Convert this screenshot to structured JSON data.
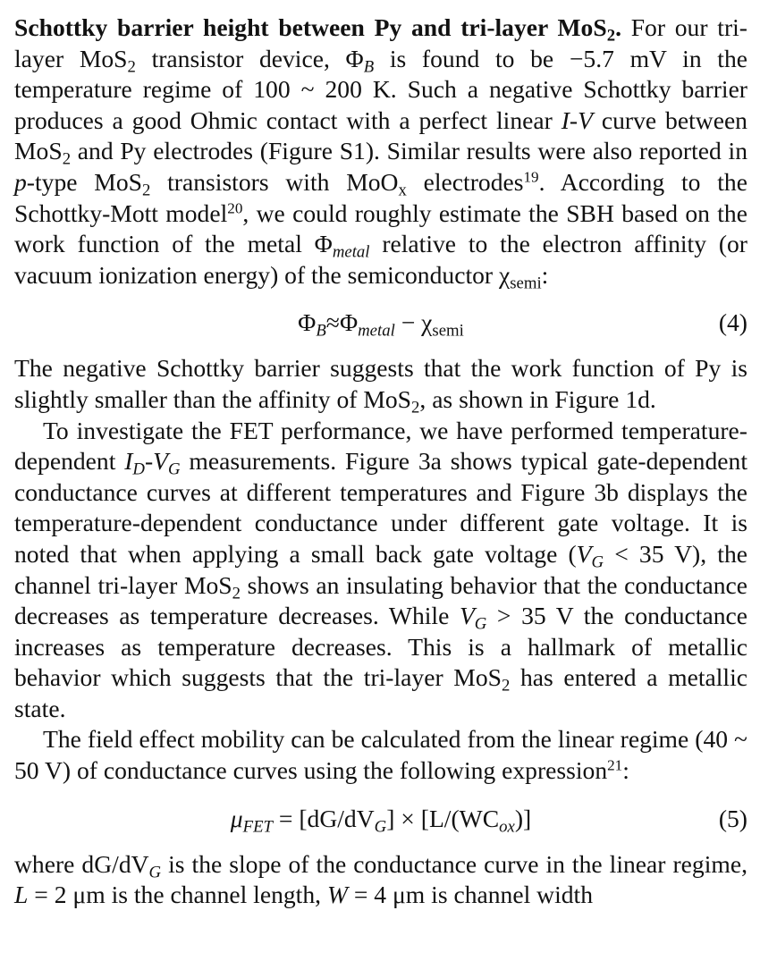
{
  "section": {
    "heading_a": "Schottky barrier height between Py and tri-layer MoS",
    "heading_sub": "2",
    "heading_b": "."
  },
  "para1": {
    "t1": " For our tri-layer MoS",
    "s1": "2",
    "t2": " transistor device, Φ",
    "s2": "B",
    "t3": " is found to be −5.7 mV in the temperature regime of 100 ~ 200 K. Such a negative Schottky barrier produces a good Ohmic contact with a perfect linear ",
    "iv": "I-V",
    "t4": " curve between MoS",
    "s3": "2",
    "t5": " and Py electrodes (Figure S1). Similar results were also reported in ",
    "ptype": "p",
    "t6": "-type MoS",
    "s4": "2",
    "t7": " transistors with MoO",
    "s5": "x",
    "t8": " electrodes",
    "ref19": "19",
    "t9": ". According to the Schottky-Mott model",
    "ref20": "20",
    "t10": ", we could roughly estimate the SBH based on the work function of the metal Φ",
    "s6": "metal",
    "t11": " relative to the electron affinity (or vacuum ionization energy) of the semiconductor χ",
    "s7": "semi",
    "t12": ":"
  },
  "eq4": {
    "a": "Φ",
    "a_sub": "B",
    "b": "≈Φ",
    "b_sub": "metal",
    "c": " − χ",
    "c_sub": "semi",
    "number": "(4)"
  },
  "para2": {
    "t1": "The negative Schottky barrier suggests that the work function of Py is slightly smaller than the affinity of MoS",
    "s1": "2",
    "t2": ", as shown in Figure 1d."
  },
  "para3": {
    "t1": "To investigate the FET performance, we have performed temperature-dependent ",
    "id": "I",
    "id_sub": "D",
    "dash": "-",
    "vg": "V",
    "vg_sub": "G",
    "t2": " measurements. Figure 3a shows typical gate-dependent conductance curves at different temperatures and Figure 3b displays the temperature-dependent conductance under different gate voltage. It is noted that when applying a small back gate voltage (",
    "vg2": "V",
    "vg2_sub": "G",
    "t3": " < 35 V), the channel tri-layer MoS",
    "s1": "2",
    "t4": " shows an insulating behavior that the conductance decreases as temperature decreases. While ",
    "vg3": "V",
    "vg3_sub": "G",
    "t5": " > 35 V the conductance increases as temperature decreases. This is a hallmark of metallic behavior which suggests that the tri-layer MoS",
    "s2": "2",
    "t6": " has entered a metallic state."
  },
  "para4": {
    "t1": "The field effect mobility can be calculated from the linear regime (40 ~ 50 V) of conductance curves using the following expression",
    "ref21": "21",
    "t2": ":"
  },
  "eq5": {
    "mu": "μ",
    "mu_sub": "FET",
    "a": " = [dG/dV",
    "a_sub": "G",
    "b": "] × [L/(WC",
    "b_sub": "ox",
    "c": ")]",
    "number": "(5)"
  },
  "para5": {
    "t1": "where dG/dV",
    "s1": "G",
    "t2": " is the slope of the conductance curve in the linear regime, ",
    "L": "L",
    "t3": " = 2 μm is the channel length, ",
    "W": "W",
    "t4": " = 4 μm is channel width"
  }
}
